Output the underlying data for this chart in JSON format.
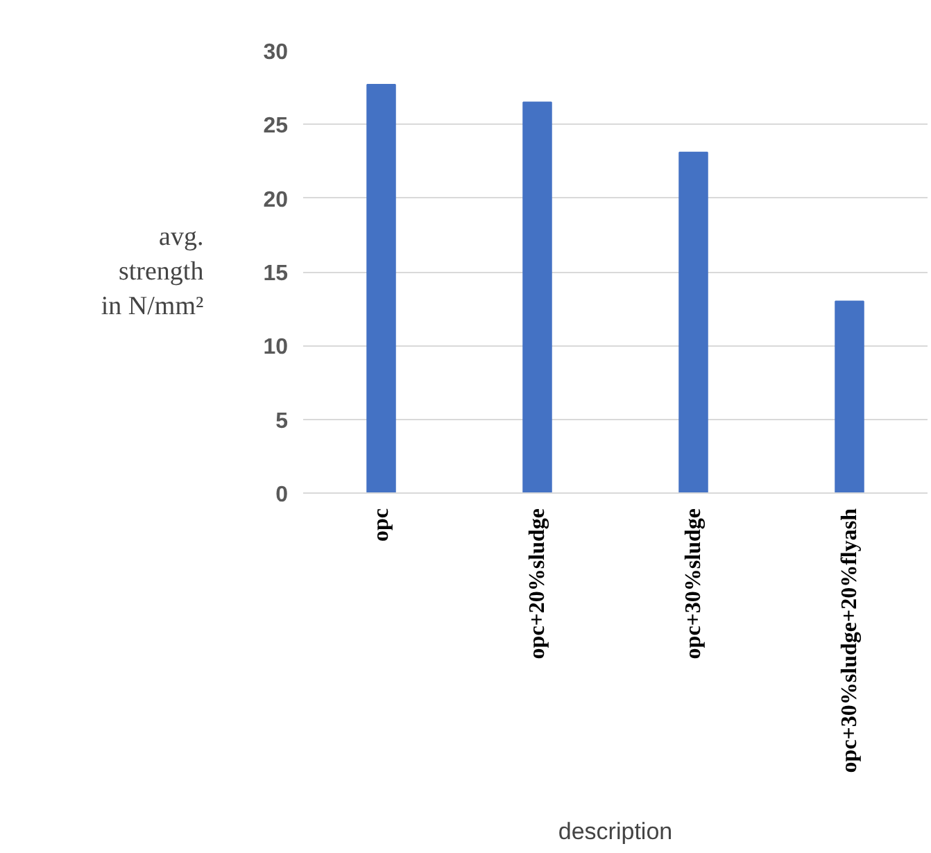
{
  "chart_data": {
    "type": "bar",
    "xlabel": "description",
    "ylabel": "avg.\nstrength\nin N/mm²",
    "categories": [
      "opc",
      "opc+20%sludge",
      "opc+30%sludge",
      "opc+30%sludge+20%flyash"
    ],
    "values": [
      27.7,
      26.5,
      23.1,
      13.0
    ],
    "color": "#4472c4",
    "ylim": [
      0,
      30
    ],
    "yticks": [
      0,
      5,
      10,
      15,
      20,
      25,
      30
    ],
    "grid": "y"
  }
}
